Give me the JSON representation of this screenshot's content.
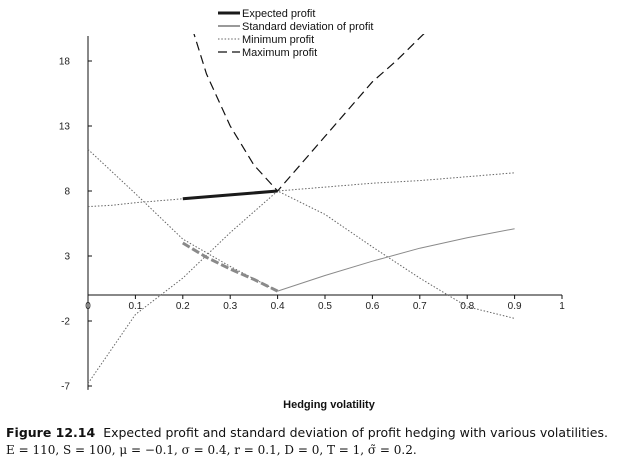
{
  "chart_data": {
    "type": "line",
    "xlabel": "Hedging volatility",
    "ylabel": "",
    "xlim": [
      0,
      1
    ],
    "ylim": [
      -7,
      20
    ],
    "x_ticks": [
      "0",
      "0.1",
      "0.2",
      "0.3",
      "0.4",
      "0.5",
      "0.6",
      "0.7",
      "0.8",
      "0.9",
      "1"
    ],
    "y_ticks": [
      "18",
      "13",
      "8",
      "3",
      "-2",
      "-7"
    ],
    "legend_position": "top-center",
    "grid": false,
    "series": [
      {
        "name": "Expected profit",
        "style": "thick-solid",
        "x": [
          0.2,
          0.3,
          0.4
        ],
        "y": [
          7.4,
          7.7,
          8.0
        ]
      },
      {
        "name": "Standard deviation of profit",
        "style": "thin-solid-grey",
        "x": [
          0.4,
          0.5,
          0.6,
          0.7,
          0.8,
          0.9
        ],
        "y": [
          0.3,
          1.5,
          2.6,
          3.6,
          4.4,
          5.1
        ]
      },
      {
        "name": "Minimum profit",
        "style": "dotted",
        "x": [
          0.0,
          0.1,
          0.2,
          0.3,
          0.4,
          0.5,
          0.6,
          0.7,
          0.8,
          0.9
        ],
        "y": [
          -6.8,
          -1.5,
          1.3,
          4.8,
          8.0,
          6.2,
          3.7,
          1.3,
          -0.9,
          -1.8
        ]
      },
      {
        "name": "Maximum profit",
        "style": "dashed",
        "x": [
          0.22,
          0.25,
          0.3,
          0.35,
          0.4,
          0.45,
          0.5,
          0.55,
          0.6,
          0.65,
          0.72
        ],
        "y": [
          20.5,
          17.0,
          13.0,
          10.0,
          8.0,
          10.1,
          12.2,
          14.3,
          16.4,
          18.0,
          20.5
        ]
      },
      {
        "name": "",
        "style": "dotted",
        "x": [
          0.0,
          0.05,
          0.1,
          0.2,
          0.3,
          0.4,
          0.5,
          0.6,
          0.7,
          0.8,
          0.9
        ],
        "y": [
          6.8,
          6.9,
          7.1,
          7.4,
          7.7,
          8.0,
          8.3,
          8.6,
          8.8,
          9.1,
          9.4
        ]
      },
      {
        "name": "",
        "style": "dotted",
        "x": [
          0.0,
          0.1,
          0.2,
          0.3,
          0.4
        ],
        "y": [
          11.2,
          7.8,
          4.3,
          2.2,
          0.3
        ]
      },
      {
        "name": "",
        "style": "thick-dashed-grey",
        "x": [
          0.2,
          0.25,
          0.3,
          0.35,
          0.4
        ],
        "y": [
          4.0,
          2.9,
          2.0,
          1.2,
          0.3
        ]
      }
    ]
  },
  "caption": {
    "label": "Figure 12.14",
    "text": "Expected profit and standard deviation of profit hedging with various volatilities.",
    "formula": "E = 110, S = 100, μ = −0.1, σ = 0.4, r = 0.1, D = 0, T = 1, σ̃ = 0.2."
  }
}
